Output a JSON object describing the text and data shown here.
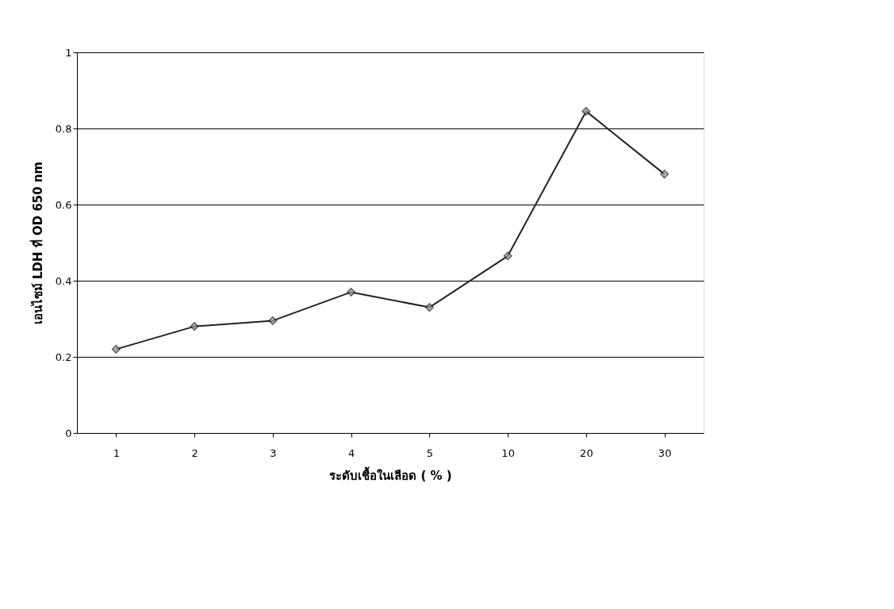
{
  "chart_data": {
    "type": "line",
    "xlabel": "ระดับเชื้อในเลือด ( % )",
    "ylabel": "เอนไซม์ LDH ที่ OD 650 nm",
    "categories": [
      "1",
      "2",
      "3",
      "4",
      "5",
      "10",
      "20",
      "30"
    ],
    "series": [
      {
        "color": "#222222",
        "values": [
          0.22,
          0.28,
          0.295,
          0.37,
          0.33,
          0.465,
          0.845,
          0.68
        ]
      }
    ],
    "ylim": [
      0,
      1
    ],
    "yticks": [
      0,
      0.2,
      0.4,
      0.6,
      0.8,
      1
    ],
    "grid": "y",
    "marker": "diamond",
    "line_style": "solid",
    "legend": false
  }
}
